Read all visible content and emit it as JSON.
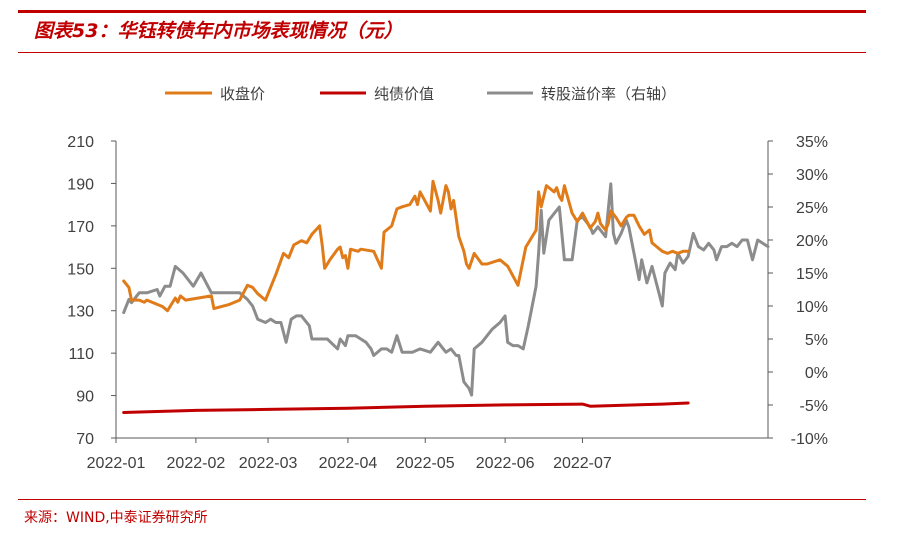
{
  "figure": {
    "title": "图表53：华钰转债年内市场表现情况（元）",
    "source": "来源：WIND,中泰证券研究所"
  },
  "colors": {
    "accent": "#c00000",
    "close": "#e07b1a",
    "bond": "#c00000",
    "premium": "#8c8c8c"
  },
  "chart_data": {
    "type": "line",
    "title": "",
    "xlabel": "",
    "ylabel": "",
    "ylim": [
      70,
      210
    ],
    "y2lim": [
      -10,
      35
    ],
    "yticks": [
      "210",
      "190",
      "170",
      "150",
      "130",
      "110",
      "90",
      "70"
    ],
    "y2ticks": [
      "35%",
      "30%",
      "25%",
      "20%",
      "15%",
      "10%",
      "5%",
      "0%",
      "-5%",
      "-10%"
    ],
    "xticks": [
      "2022-01",
      "2022-02",
      "2022-03",
      "2022-04",
      "2022-05",
      "2022-06",
      "2022-07"
    ],
    "legend_position": "top",
    "grid": false,
    "series": [
      {
        "name": "收盘价",
        "axis": "left",
        "color": "#e07b1a",
        "points": [
          [
            "2022-01-04",
            144
          ],
          [
            "2022-01-06",
            141
          ],
          [
            "2022-01-07",
            135
          ],
          [
            "2022-01-10",
            135
          ],
          [
            "2022-01-12",
            134
          ],
          [
            "2022-01-13",
            135
          ],
          [
            "2022-01-17",
            133
          ],
          [
            "2022-01-19",
            132
          ],
          [
            "2022-01-21",
            130
          ],
          [
            "2022-01-24",
            136
          ],
          [
            "2022-01-25",
            134
          ],
          [
            "2022-01-26",
            137
          ],
          [
            "2022-01-28",
            135
          ],
          [
            "2022-02-07",
            137
          ],
          [
            "2022-02-08",
            131
          ],
          [
            "2022-02-14",
            133
          ],
          [
            "2022-02-18",
            135
          ],
          [
            "2022-02-21",
            142
          ],
          [
            "2022-02-23",
            141
          ],
          [
            "2022-02-25",
            138
          ],
          [
            "2022-02-28",
            135
          ],
          [
            "2022-03-02",
            141
          ],
          [
            "2022-03-04",
            147
          ],
          [
            "2022-03-07",
            157
          ],
          [
            "2022-03-09",
            155
          ],
          [
            "2022-03-11",
            161
          ],
          [
            "2022-03-14",
            163
          ],
          [
            "2022-03-16",
            162
          ],
          [
            "2022-03-18",
            166
          ],
          [
            "2022-03-21",
            170
          ],
          [
            "2022-03-22",
            161
          ],
          [
            "2022-03-23",
            150
          ],
          [
            "2022-03-25",
            154
          ],
          [
            "2022-03-28",
            159
          ],
          [
            "2022-03-29",
            160
          ],
          [
            "2022-03-30",
            155
          ],
          [
            "2022-03-31",
            156
          ],
          [
            "2022-04-01",
            150
          ],
          [
            "2022-04-02",
            159
          ],
          [
            "2022-04-05",
            158
          ],
          [
            "2022-04-06",
            159
          ],
          [
            "2022-04-11",
            158
          ],
          [
            "2022-04-14",
            150
          ],
          [
            "2022-04-15",
            167
          ],
          [
            "2022-04-18",
            170
          ],
          [
            "2022-04-20",
            178
          ],
          [
            "2022-04-22",
            179
          ],
          [
            "2022-04-25",
            180
          ],
          [
            "2022-04-27",
            184
          ],
          [
            "2022-04-28",
            180
          ],
          [
            "2022-04-29",
            186
          ],
          [
            "2022-05-03",
            177
          ],
          [
            "2022-05-04",
            191
          ],
          [
            "2022-05-06",
            182
          ],
          [
            "2022-05-07",
            176
          ],
          [
            "2022-05-09",
            189
          ],
          [
            "2022-05-10",
            186
          ],
          [
            "2022-05-11",
            178
          ],
          [
            "2022-05-12",
            182
          ],
          [
            "2022-05-14",
            165
          ],
          [
            "2022-05-16",
            158
          ],
          [
            "2022-05-17",
            152
          ],
          [
            "2022-05-18",
            150
          ],
          [
            "2022-05-20",
            157
          ],
          [
            "2022-05-23",
            152
          ],
          [
            "2022-05-25",
            152
          ],
          [
            "2022-05-30",
            154
          ],
          [
            "2022-06-02",
            151
          ],
          [
            "2022-06-06",
            142
          ],
          [
            "2022-06-09",
            160
          ],
          [
            "2022-06-13",
            168
          ],
          [
            "2022-06-14",
            186
          ],
          [
            "2022-06-15",
            179
          ],
          [
            "2022-06-17",
            189
          ],
          [
            "2022-06-20",
            186
          ],
          [
            "2022-06-21",
            188
          ],
          [
            "2022-06-22",
            184
          ],
          [
            "2022-06-23",
            182
          ],
          [
            "2022-06-24",
            189
          ],
          [
            "2022-06-27",
            176
          ],
          [
            "2022-06-29",
            172
          ],
          [
            "2022-07-01",
            176
          ],
          [
            "2022-07-04",
            169
          ],
          [
            "2022-07-06",
            172
          ],
          [
            "2022-07-07",
            176
          ],
          [
            "2022-07-08",
            171
          ],
          [
            "2022-07-10",
            168
          ],
          [
            "2022-07-11",
            171
          ],
          [
            "2022-07-12",
            177
          ],
          [
            "2022-07-14",
            174
          ],
          [
            "2022-07-16",
            170
          ],
          [
            "2022-07-18",
            174
          ],
          [
            "2022-07-19",
            175
          ],
          [
            "2022-07-21",
            175
          ],
          [
            "2022-07-23",
            170
          ],
          [
            "2022-07-25",
            166
          ],
          [
            "2022-07-27",
            168
          ],
          [
            "2022-07-28",
            162
          ],
          [
            "2022-07-30",
            160
          ],
          [
            "2022-08-01",
            158
          ],
          [
            "2022-08-03",
            157
          ],
          [
            "2022-08-05",
            158
          ],
          [
            "2022-08-07",
            157
          ],
          [
            "2022-08-09",
            158
          ],
          [
            "2022-08-11",
            158
          ]
        ]
      },
      {
        "name": "纯债价值",
        "axis": "left",
        "color": "#c00000",
        "points": [
          [
            "2022-01-04",
            82
          ],
          [
            "2022-02-01",
            83
          ],
          [
            "2022-03-01",
            83.5
          ],
          [
            "2022-04-01",
            84
          ],
          [
            "2022-05-01",
            85
          ],
          [
            "2022-06-01",
            85.6
          ],
          [
            "2022-07-01",
            86
          ],
          [
            "2022-07-04",
            85
          ],
          [
            "2022-08-01",
            86
          ],
          [
            "2022-08-11",
            86.5
          ]
        ]
      },
      {
        "name": "转股溢价率（右轴）",
        "axis": "right",
        "color": "#8c8c8c",
        "points": [
          [
            "2022-01-04",
            9
          ],
          [
            "2022-01-06",
            11
          ],
          [
            "2022-01-07",
            10.5
          ],
          [
            "2022-01-10",
            12
          ],
          [
            "2022-01-13",
            12
          ],
          [
            "2022-01-17",
            12.5
          ],
          [
            "2022-01-18",
            11.5
          ],
          [
            "2022-01-20",
            13
          ],
          [
            "2022-01-22",
            13
          ],
          [
            "2022-01-24",
            16
          ],
          [
            "2022-01-27",
            15
          ],
          [
            "2022-01-31",
            13
          ],
          [
            "2022-02-03",
            15
          ],
          [
            "2022-02-07",
            12
          ],
          [
            "2022-02-10",
            12
          ],
          [
            "2022-02-14",
            12
          ],
          [
            "2022-02-18",
            12
          ],
          [
            "2022-02-21",
            11
          ],
          [
            "2022-02-23",
            10
          ],
          [
            "2022-02-25",
            8
          ],
          [
            "2022-02-28",
            7.5
          ],
          [
            "2022-03-02",
            8
          ],
          [
            "2022-03-04",
            7.5
          ],
          [
            "2022-03-06",
            7.5
          ],
          [
            "2022-03-08",
            4.5
          ],
          [
            "2022-03-10",
            8
          ],
          [
            "2022-03-12",
            8.5
          ],
          [
            "2022-03-14",
            8.5
          ],
          [
            "2022-03-17",
            7
          ],
          [
            "2022-03-18",
            5
          ],
          [
            "2022-03-20",
            5
          ],
          [
            "2022-03-24",
            5
          ],
          [
            "2022-03-28",
            3.5
          ],
          [
            "2022-03-29",
            5
          ],
          [
            "2022-03-31",
            4
          ],
          [
            "2022-04-01",
            5.5
          ],
          [
            "2022-04-04",
            5.5
          ],
          [
            "2022-04-06",
            5
          ],
          [
            "2022-04-08",
            4.5
          ],
          [
            "2022-04-10",
            3.5
          ],
          [
            "2022-04-11",
            2.5
          ],
          [
            "2022-04-14",
            3.5
          ],
          [
            "2022-04-16",
            3.5
          ],
          [
            "2022-04-18",
            3
          ],
          [
            "2022-04-20",
            5.5
          ],
          [
            "2022-04-22",
            3
          ],
          [
            "2022-04-24",
            3
          ],
          [
            "2022-04-26",
            3
          ],
          [
            "2022-04-29",
            3.5
          ],
          [
            "2022-05-03",
            3
          ],
          [
            "2022-05-06",
            4.5
          ],
          [
            "2022-05-09",
            3
          ],
          [
            "2022-05-11",
            3.5
          ],
          [
            "2022-05-13",
            2.5
          ],
          [
            "2022-05-14",
            2.5
          ],
          [
            "2022-05-16",
            -1.5
          ],
          [
            "2022-05-18",
            -2.5
          ],
          [
            "2022-05-19",
            -3.5
          ],
          [
            "2022-05-20",
            3.5
          ],
          [
            "2022-05-23",
            4.5
          ],
          [
            "2022-05-25",
            5.5
          ],
          [
            "2022-05-27",
            6.5
          ],
          [
            "2022-05-30",
            7.5
          ],
          [
            "2022-06-01",
            8.5
          ],
          [
            "2022-06-02",
            4.5
          ],
          [
            "2022-06-04",
            4
          ],
          [
            "2022-06-06",
            4
          ],
          [
            "2022-06-08",
            3.5
          ],
          [
            "2022-06-10",
            7
          ],
          [
            "2022-06-13",
            13
          ],
          [
            "2022-06-14",
            18
          ],
          [
            "2022-06-15",
            24.5
          ],
          [
            "2022-06-16",
            18
          ],
          [
            "2022-06-18",
            23
          ],
          [
            "2022-06-20",
            24
          ],
          [
            "2022-06-22",
            25
          ],
          [
            "2022-06-24",
            17
          ],
          [
            "2022-06-27",
            17
          ],
          [
            "2022-06-29",
            23
          ],
          [
            "2022-07-01",
            23.5
          ],
          [
            "2022-07-04",
            22
          ],
          [
            "2022-07-05",
            21
          ],
          [
            "2022-07-07",
            22
          ],
          [
            "2022-07-10",
            20.5
          ],
          [
            "2022-07-12",
            28.5
          ],
          [
            "2022-07-13",
            21
          ],
          [
            "2022-07-14",
            19.5
          ],
          [
            "2022-07-16",
            21
          ],
          [
            "2022-07-18",
            23
          ],
          [
            "2022-07-19",
            22
          ],
          [
            "2022-07-21",
            18
          ],
          [
            "2022-07-23",
            14
          ],
          [
            "2022-07-24",
            17
          ],
          [
            "2022-07-26",
            13.5
          ],
          [
            "2022-07-28",
            16
          ],
          [
            "2022-07-30",
            13
          ],
          [
            "2022-08-01",
            10
          ],
          [
            "2022-08-02",
            15
          ],
          [
            "2022-08-04",
            16.5
          ],
          [
            "2022-08-06",
            15.5
          ],
          [
            "2022-08-07",
            18
          ],
          [
            "2022-08-09",
            16.5
          ],
          [
            "2022-08-11",
            17.5
          ],
          [
            "2022-08-13",
            21
          ],
          [
            "2022-08-15",
            19
          ],
          [
            "2022-08-17",
            18.5
          ],
          [
            "2022-08-19",
            19.5
          ],
          [
            "2022-08-21",
            18.5
          ],
          [
            "2022-08-22",
            17
          ],
          [
            "2022-08-24",
            19
          ],
          [
            "2022-08-26",
            19
          ],
          [
            "2022-08-28",
            19.5
          ],
          [
            "2022-08-30",
            19
          ],
          [
            "2022-09-01",
            20
          ],
          [
            "2022-09-03",
            20
          ],
          [
            "2022-09-05",
            17
          ],
          [
            "2022-09-07",
            20
          ],
          [
            "2022-09-09",
            19.5
          ],
          [
            "2022-09-11",
            19
          ]
        ]
      }
    ]
  }
}
